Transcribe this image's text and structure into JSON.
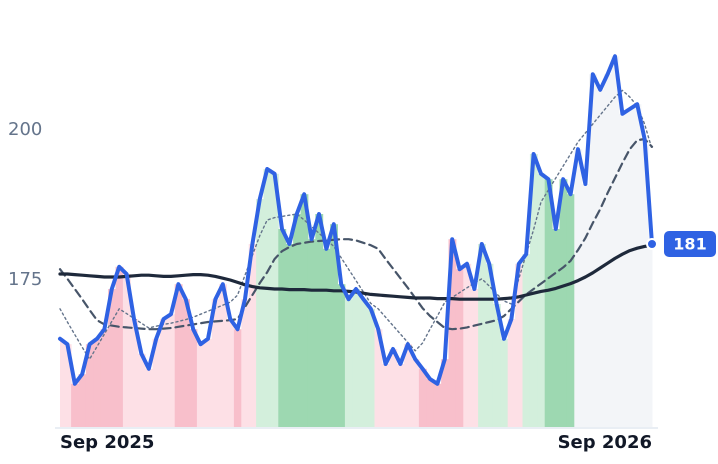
{
  "chart_data": {
    "type": "line",
    "categories": [
      "Sep 2025",
      null,
      null,
      null,
      null,
      null,
      null,
      null,
      null,
      null,
      null,
      null,
      null,
      null,
      null,
      null,
      null,
      null,
      null,
      null,
      null,
      null,
      null,
      null,
      null,
      null,
      null,
      null,
      null,
      null,
      null,
      null,
      null,
      null,
      null,
      null,
      null,
      null,
      null,
      null,
      null,
      null,
      null,
      null,
      null,
      null,
      null,
      null,
      null,
      null,
      null,
      null,
      null,
      null,
      null,
      null,
      null,
      null,
      null,
      null,
      null,
      null,
      null,
      null,
      null,
      null,
      null,
      null,
      null,
      null,
      null,
      null,
      null,
      null,
      null,
      null,
      null,
      null,
      null,
      null,
      "Sep 2026"
    ],
    "ylim": [
      150.5,
      215
    ],
    "yticks": [
      175,
      200
    ],
    "series": [
      {
        "color": "#2f62e3",
        "style": "solid-main",
        "values": [
          165.2,
          164.3,
          157.7,
          159.3,
          164.3,
          165.2,
          166.8,
          173.5,
          177.2,
          176,
          168.5,
          162.7,
          160.2,
          165.2,
          168.5,
          169.3,
          174.3,
          171.8,
          166.8,
          164.3,
          165.2,
          171.8,
          174.3,
          168.5,
          166.8,
          171.8,
          181,
          188.5,
          193.5,
          192.7,
          183.5,
          181,
          186,
          189.3,
          181.8,
          186,
          180.2,
          184.3,
          174.3,
          171.8,
          173.5,
          171.8,
          170.2,
          166.8,
          161,
          163.5,
          161,
          164.3,
          161.8,
          160.2,
          158.5,
          157.7,
          161.8,
          181.8,
          176.8,
          177.7,
          173.5,
          181,
          177.7,
          171,
          165.2,
          168.5,
          177.7,
          179.3,
          196,
          192.7,
          191.8,
          183.5,
          191.8,
          189.3,
          196.8,
          191,
          209.3,
          206.7,
          209.3,
          212.3,
          202.7,
          203.5,
          204.3,
          198.5,
          181
        ],
        "fill_colors": [
          "#fde0e6",
          "#fde0e6",
          "#f8bfcb",
          "#f8bfcb",
          "#f8bfcb",
          "#f8bfcb",
          "#f8bfcb",
          "#f8bfcb",
          "#f8bfcb",
          "#fde0e6",
          "#fde0e6",
          "#fde0e6",
          "#fde0e6",
          "#fde0e6",
          "#fde0e6",
          "#fde0e6",
          "#f8bfcb",
          "#f8bfcb",
          "#f8bfcb",
          "#fde0e6",
          "#fde0e6",
          "#fde0e6",
          "#fde0e6",
          "#fde0e6",
          "#f8bfcb",
          "#fde0e6",
          "#fde0e6",
          "#d3efdc",
          "#d3efdc",
          "#d3efdc",
          "#9dd8b1",
          "#9dd8b1",
          "#9dd8b1",
          "#9dd8b1",
          "#9dd8b1",
          "#9dd8b1",
          "#9dd8b1",
          "#9dd8b1",
          "#9dd8b1",
          "#d3efdc",
          "#d3efdc",
          "#d3efdc",
          "#d3efdc",
          "#fde0e6",
          "#fde0e6",
          "#fde0e6",
          "#fde0e6",
          "#fde0e6",
          "#fde0e6",
          "#f8bfcb",
          "#f8bfcb",
          "#f8bfcb",
          "#f8bfcb",
          "#f8bfcb",
          "#f8bfcb",
          "#fde0e6",
          "#fde0e6",
          "#d3efdc",
          "#d3efdc",
          "#d3efdc",
          "#d3efdc",
          "#fde0e6",
          "#fde0e6",
          "#d3efdc",
          "#d3efdc",
          "#d3efdc",
          "#9dd8b1",
          "#9dd8b1",
          "#9dd8b1",
          "#9dd8b1",
          "#f3f5f8",
          "#f3f5f8",
          "#f3f5f8",
          "#f3f5f8",
          "#f3f5f8",
          "#f3f5f8",
          "#f3f5f8",
          "#f3f5f8",
          "#f3f5f8",
          "#f3f5f8",
          "#f3f5f8"
        ]
      },
      {
        "color": "#64748b",
        "style": "dotted",
        "values": [
          170.2,
          168.0,
          165.9,
          163.8,
          161.8,
          163.9,
          166.0,
          168.1,
          170.2,
          169.4,
          168.6,
          167.8,
          167.0,
          167.3,
          167.6,
          167.8,
          168.1,
          168.4,
          168.8,
          169.3,
          169.8,
          170.3,
          170.8,
          171.3,
          172.5,
          175.8,
          179.1,
          182.4,
          185.0,
          185.4,
          185.6,
          185.8,
          186.0,
          185.0,
          183.9,
          182.8,
          181.7,
          180.6,
          178.7,
          176.8,
          174.9,
          173.0,
          171.1,
          170.2,
          168.8,
          167.4,
          166.0,
          164.6,
          163.2,
          164.5,
          166.8,
          169.0,
          171.3,
          172.1,
          172.9,
          173.7,
          174.5,
          175.2,
          174.0,
          172.7,
          171.5,
          171.0,
          175.2,
          179.3,
          183.4,
          188.0,
          190.0,
          192.0,
          194.0,
          196.0,
          198.0,
          199.5,
          201.0,
          202.5,
          204.0,
          205.5,
          206.6,
          205.5,
          204.0,
          201.0,
          196.8
        ]
      },
      {
        "color": "#475569",
        "style": "dashed",
        "values": [
          176.8,
          175.2,
          173.5,
          171.8,
          170.0,
          168.3,
          167.6,
          167.4,
          167.2,
          167.1,
          167.0,
          166.9,
          166.8,
          166.8,
          166.9,
          167.0,
          167.2,
          167.4,
          167.6,
          167.8,
          168.0,
          168.1,
          168.2,
          168.3,
          168.5,
          170.5,
          172.5,
          174.5,
          176.3,
          178.5,
          179.8,
          180.5,
          181.0,
          181.2,
          181.4,
          181.5,
          181.6,
          181.7,
          181.8,
          181.8,
          181.6,
          181.2,
          180.8,
          180.2,
          178.5,
          176.9,
          175.3,
          173.7,
          172.0,
          170.3,
          169.0,
          168.0,
          167.0,
          166.8,
          166.9,
          167.1,
          167.4,
          167.7,
          168.0,
          168.3,
          169.0,
          170.2,
          171.4,
          172.6,
          173.5,
          174.4,
          175.3,
          176.2,
          177.1,
          178.2,
          180.0,
          182.0,
          184.5,
          186.8,
          189.5,
          192.0,
          194.5,
          196.8,
          198.3,
          198.5,
          197.2
        ]
      },
      {
        "color": "#1e293b",
        "style": "solid-thick",
        "values": [
          176.0,
          176.0,
          175.9,
          175.8,
          175.7,
          175.6,
          175.5,
          175.5,
          175.5,
          175.6,
          175.7,
          175.8,
          175.8,
          175.7,
          175.6,
          175.6,
          175.7,
          175.8,
          175.9,
          175.9,
          175.8,
          175.6,
          175.3,
          175.0,
          174.6,
          174.2,
          173.9,
          173.7,
          173.6,
          173.5,
          173.5,
          173.4,
          173.4,
          173.4,
          173.3,
          173.3,
          173.3,
          173.2,
          173.2,
          173.1,
          173.0,
          172.8,
          172.6,
          172.5,
          172.4,
          172.3,
          172.2,
          172.1,
          172.0,
          172.0,
          172.0,
          171.9,
          171.9,
          171.9,
          171.8,
          171.8,
          171.8,
          171.8,
          171.8,
          171.8,
          171.9,
          172.0,
          172.2,
          172.5,
          172.8,
          173.1,
          173.3,
          173.6,
          174.0,
          174.4,
          174.9,
          175.5,
          176.2,
          177.0,
          177.8,
          178.6,
          179.3,
          179.9,
          180.3,
          180.6,
          180.8
        ]
      }
    ]
  }
}
